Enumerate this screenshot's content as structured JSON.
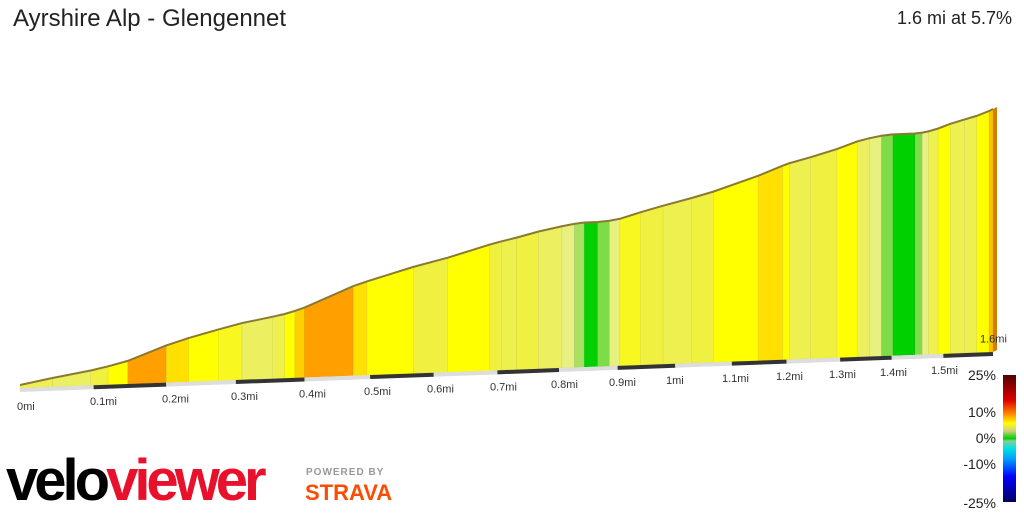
{
  "title": "Ayrshire Alp - Glengennet",
  "summary": "1.6 mi at 5.7%",
  "logo": {
    "velo": "velo",
    "viewer": "viewer",
    "powered_by": "POWERED BY",
    "strava": "STRAVA"
  },
  "chart_data": {
    "type": "area",
    "xlabel": "",
    "ylabel": "",
    "xlim": [
      0,
      1.6
    ],
    "x_ticks": [
      "0mi",
      "0.1mi",
      "0.2mi",
      "0.3mi",
      "0.4mi",
      "0.5mi",
      "0.6mi",
      "0.7mi",
      "0.8mi",
      "0.9mi",
      "1mi",
      "1.1mi",
      "1.2mi",
      "1.3mi",
      "1.4mi",
      "1.5mi",
      "1.6mi"
    ],
    "segments_end_mi": [
      0.044,
      0.096,
      0.12,
      0.147,
      0.2,
      0.232,
      0.275,
      0.309,
      0.353,
      0.371,
      0.386,
      0.4,
      0.474,
      0.495,
      0.568,
      0.622,
      0.688,
      0.707,
      0.731,
      0.767,
      0.805,
      0.826,
      0.843,
      0.866,
      0.886,
      0.904,
      0.94,
      0.979,
      1.029,
      1.068,
      1.148,
      1.193,
      1.206,
      1.245,
      1.294,
      1.333,
      1.357,
      1.38,
      1.402,
      1.445,
      1.459,
      1.471,
      1.49,
      1.514,
      1.543,
      1.567,
      1.592,
      1.6
    ],
    "segments_gradient_pct": [
      4.5,
      4,
      5,
      6,
      9,
      7,
      6,
      5.5,
      4,
      4.5,
      6,
      7.5,
      9,
      7,
      6,
      5,
      6,
      5,
      4.5,
      5,
      4,
      3,
      2,
      0,
      1.5,
      3,
      5.5,
      5,
      4.5,
      5,
      6,
      7,
      6,
      4.5,
      5,
      6,
      4,
      3,
      1.5,
      0,
      1.5,
      3,
      4.5,
      6,
      4.5,
      4.5,
      6,
      8
    ],
    "legend": {
      "ticks": [
        "25%",
        "10%",
        "0%",
        "-10%",
        "-25%"
      ],
      "colors": {
        "-25": "#000060",
        "-15": "#0000ff",
        "-8": "#00a0ff",
        "-4": "#00e0e0",
        "-1": "#80d0a0",
        "0": "#00d000",
        "2": "#a8e060",
        "3": "#e8f080",
        "5": "#f0f040",
        "6": "#ffff00",
        "8": "#ffc000",
        "9": "#ffa000",
        "12": "#ff4000",
        "15": "#e00000",
        "25": "#500000"
      }
    }
  }
}
